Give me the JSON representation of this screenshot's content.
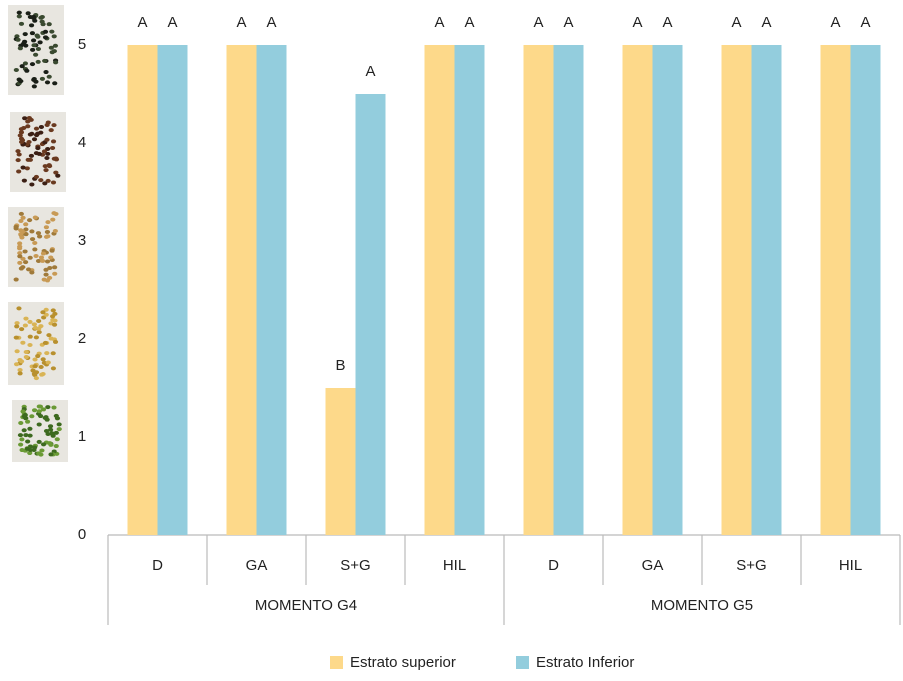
{
  "chart_data": {
    "type": "bar",
    "categories": [
      "D",
      "GA",
      "S+G",
      "HIL",
      "D",
      "GA",
      "S+G",
      "HIL"
    ],
    "groups": [
      "MOMENTO G4",
      "MOMENTO G5"
    ],
    "series": [
      {
        "name": "Estrato superior",
        "color": "#fdd98a",
        "values": [
          5,
          5,
          1.5,
          5,
          5,
          5,
          5,
          5
        ],
        "letters": [
          "A",
          "A",
          "B",
          "A",
          "A",
          "A",
          "A",
          "A"
        ]
      },
      {
        "name": "Estrato Inferior",
        "color": "#93cddd",
        "values": [
          5,
          5,
          4.5,
          5,
          5,
          5,
          5,
          5
        ],
        "letters": [
          "A",
          "A",
          "A",
          "A",
          "A",
          "A",
          "A",
          "A"
        ]
      }
    ],
    "ylim": [
      0,
      5
    ],
    "yticks": [
      0,
      1,
      2,
      3,
      4,
      5
    ],
    "grid": false,
    "legend": "bottom"
  }
}
